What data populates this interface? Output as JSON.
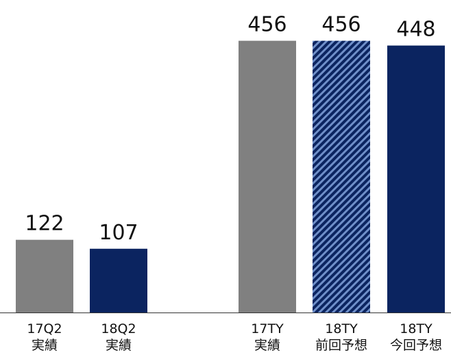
{
  "chart_data": {
    "type": "bar",
    "categories": [
      [
        "17Q2",
        "実績"
      ],
      [
        "18Q2",
        "実績"
      ],
      [
        "17TY",
        "実績"
      ],
      [
        "18TY",
        "前回予想"
      ],
      [
        "18TY",
        "今回予想"
      ]
    ],
    "values": [
      122,
      107,
      456,
      456,
      448
    ],
    "data_labels": [
      "122",
      "107",
      "456",
      "456",
      "448"
    ],
    "bar_fills": [
      "gray",
      "navy",
      "gray",
      "navy-hatched",
      "navy"
    ],
    "colors": {
      "gray": "#808080",
      "navy": "#0b2460",
      "hatch_light": "#6f8fc9",
      "axis": "#333333"
    },
    "title": "",
    "xlabel": "",
    "ylabel": "",
    "ylim": [
      0,
      490
    ],
    "grid": false,
    "legend": "none"
  }
}
